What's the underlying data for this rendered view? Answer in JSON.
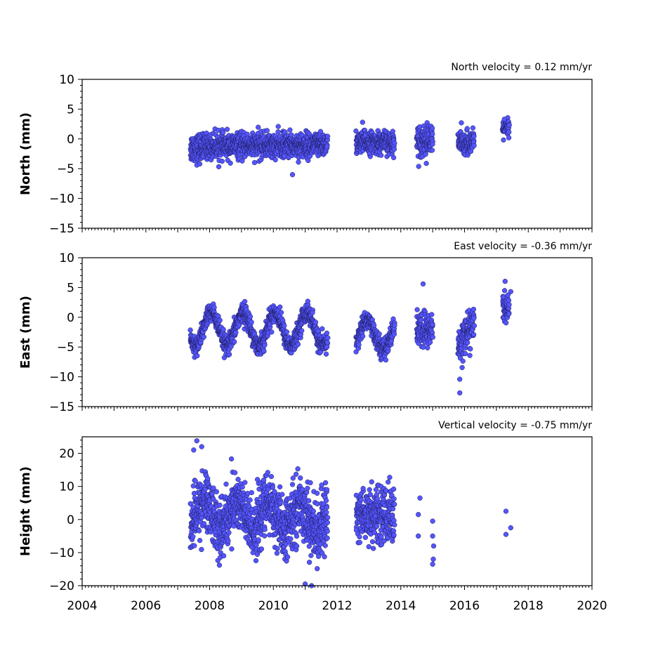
{
  "chart_data": [
    {
      "type": "scatter",
      "title": "North velocity = 0.12 mm/yr",
      "xlabel": "",
      "ylabel": "North (mm)",
      "xlim": [
        2004,
        2020
      ],
      "ylim": [
        -15,
        10
      ],
      "yticks": [
        "10",
        "5",
        "0",
        "−5",
        "−10",
        "−15"
      ],
      "marker_color": "#5555ff",
      "segments": [
        {
          "x": [
            2007.4,
            2007.8
          ],
          "mean": -1.5,
          "sd": 1.2
        },
        {
          "x": [
            2007.8,
            2011.7
          ],
          "mean": -1.1,
          "sd": 1.0,
          "trend": 0.25
        },
        {
          "x": [
            2012.6,
            2013.8
          ],
          "mean": -0.6,
          "sd": 0.9
        },
        {
          "x": [
            2014.5,
            2015.0
          ],
          "mean": -0.3,
          "sd": 1.3
        },
        {
          "x": [
            2015.8,
            2016.3
          ],
          "mean": -0.6,
          "sd": 0.9
        },
        {
          "x": [
            2017.2,
            2017.4
          ],
          "mean": 1.8,
          "sd": 0.8
        }
      ],
      "outliers": [
        [
          2010.6,
          -6.0
        ],
        [
          2012.8,
          2.8
        ],
        [
          2015.9,
          2.7
        ],
        [
          2017.25,
          3.3
        ]
      ]
    },
    {
      "type": "scatter",
      "title": "East velocity = -0.36 mm/yr",
      "xlabel": "",
      "ylabel": "East (mm)",
      "xlim": [
        2004,
        2020
      ],
      "ylim": [
        -15,
        10
      ],
      "yticks": [
        "10",
        "5",
        "0",
        "−5",
        "−10",
        "−15"
      ],
      "marker_color": "#5555ff",
      "segments": [
        {
          "x": [
            2007.4,
            2011.7
          ],
          "mean": -2.0,
          "sd": 0.8,
          "seasonal_amp": 2.8,
          "phase": 0.2
        },
        {
          "x": [
            2012.6,
            2013.8
          ],
          "mean": -3.0,
          "sd": 0.8,
          "seasonal_amp": 2.5,
          "phase": 0.3
        },
        {
          "x": [
            2014.5,
            2015.0
          ],
          "mean": -2.2,
          "sd": 1.5
        },
        {
          "x": [
            2015.8,
            2016.3
          ],
          "mean": -2.8,
          "sd": 1.5,
          "trend": 4.0
        },
        {
          "x": [
            2017.2,
            2017.4
          ],
          "mean": 1.5,
          "sd": 1.2
        }
      ],
      "outliers": [
        [
          2014.7,
          5.6
        ],
        [
          2015.85,
          -10.4
        ],
        [
          2015.85,
          -12.7
        ],
        [
          2017.45,
          4.3
        ]
      ]
    },
    {
      "type": "scatter",
      "title": "Vertical velocity = -0.75 mm/yr",
      "xlabel": "",
      "ylabel": "Height (mm)",
      "xlim": [
        2004,
        2020
      ],
      "ylim": [
        -20,
        25
      ],
      "yticks": [
        "20",
        "10",
        "0",
        "−10",
        "−20"
      ],
      "xticks": [
        "2004",
        "2006",
        "2008",
        "2010",
        "2012",
        "2014",
        "2016",
        "2018",
        "2020"
      ],
      "marker_color": "#5555ff",
      "segments": [
        {
          "x": [
            2007.4,
            2011.7
          ],
          "mean": 1.0,
          "sd": 4.5,
          "trend": -2.0,
          "seasonal_amp": 4.0,
          "phase": 0.4
        },
        {
          "x": [
            2012.6,
            2013.8
          ],
          "mean": 1.5,
          "sd": 4.0
        }
      ],
      "outliers": [
        [
          2007.6,
          23.8
        ],
        [
          2007.5,
          21.0
        ],
        [
          2007.75,
          22.0
        ],
        [
          2011.0,
          -19.5
        ],
        [
          2011.2,
          -20.0
        ],
        [
          2014.6,
          6.5
        ],
        [
          2014.55,
          1.5
        ],
        [
          2014.55,
          -5.0
        ],
        [
          2015.0,
          -0.5
        ],
        [
          2015.0,
          -5.0
        ],
        [
          2015.0,
          -13.5
        ],
        [
          2015.02,
          -12.0
        ],
        [
          2015.03,
          -8.0
        ],
        [
          2017.3,
          2.5
        ],
        [
          2017.3,
          -4.5
        ],
        [
          2017.45,
          -2.5
        ]
      ]
    }
  ]
}
